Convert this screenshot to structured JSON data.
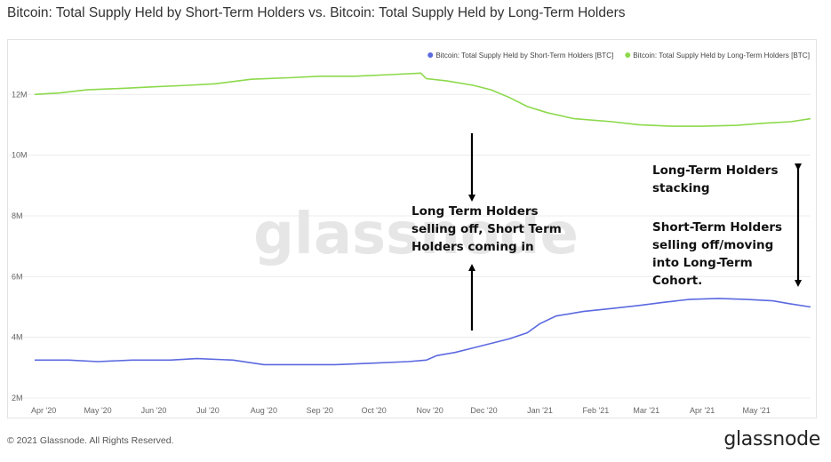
{
  "title": "Bitcoin: Total Supply Held by Short-Term Holders vs. Bitcoin: Total Supply Held by Long-Term Holders",
  "watermark": "glassnode",
  "footer": {
    "copyright": "© 2021 Glassnode. All Rights Reserved.",
    "logo": "glassnode"
  },
  "annotations": {
    "middle": [
      "Long Term Holders",
      "selling off, Short Term",
      "Holders coming in"
    ],
    "right_top": [
      "Long-Term Holders",
      "stacking"
    ],
    "right_bottom": [
      "Short-Term Holders",
      "selling off/moving",
      "into Long-Term",
      "Cohort."
    ]
  },
  "chart_data": {
    "type": "line",
    "title": "Bitcoin: Total Supply Held by Short-Term Holders vs. Bitcoin: Total Supply Held by Long-Term Holders",
    "xlabel": "",
    "ylabel": "",
    "x_ticks": [
      "Apr '20",
      "May '20",
      "Jun '20",
      "Jul '20",
      "Aug '20",
      "Sep '20",
      "Oct '20",
      "Nov '20",
      "Dec '20",
      "Jan '21",
      "Feb '21",
      "Mar '21",
      "Apr '21",
      "May '21"
    ],
    "y_ticks": [
      "2M",
      "4M",
      "6M",
      "8M",
      "10M",
      "12M"
    ],
    "ylim": [
      2000000,
      13500000
    ],
    "xlim": [
      "2020-03-27",
      "2021-05-31"
    ],
    "grid": true,
    "legend_position": "top-right",
    "colors": {
      "short_term": "#5B69E0",
      "long_term": "#8CD94B"
    },
    "series": [
      {
        "name": "Bitcoin: Total Supply Held by Short-Term Holders [BTC]",
        "color": "#5B69E0",
        "points": [
          [
            "2020-03-27",
            3250000
          ],
          [
            "2020-04-15",
            3250000
          ],
          [
            "2020-05-01",
            3200000
          ],
          [
            "2020-05-20",
            3250000
          ],
          [
            "2020-06-10",
            3250000
          ],
          [
            "2020-06-25",
            3300000
          ],
          [
            "2020-07-15",
            3250000
          ],
          [
            "2020-08-01",
            3100000
          ],
          [
            "2020-08-20",
            3100000
          ],
          [
            "2020-09-10",
            3100000
          ],
          [
            "2020-10-01",
            3150000
          ],
          [
            "2020-10-20",
            3200000
          ],
          [
            "2020-10-30",
            3250000
          ],
          [
            "2020-11-05",
            3400000
          ],
          [
            "2020-11-15",
            3500000
          ],
          [
            "2020-11-25",
            3650000
          ],
          [
            "2020-12-05",
            3800000
          ],
          [
            "2020-12-15",
            3950000
          ],
          [
            "2020-12-25",
            4150000
          ],
          [
            "2021-01-01",
            4450000
          ],
          [
            "2021-01-10",
            4700000
          ],
          [
            "2021-01-25",
            4850000
          ],
          [
            "2021-02-10",
            4950000
          ],
          [
            "2021-02-25",
            5050000
          ],
          [
            "2021-03-10",
            5150000
          ],
          [
            "2021-03-25",
            5250000
          ],
          [
            "2021-04-10",
            5280000
          ],
          [
            "2021-04-25",
            5250000
          ],
          [
            "2021-05-10",
            5200000
          ],
          [
            "2021-05-20",
            5100000
          ],
          [
            "2021-05-31",
            5000000
          ]
        ]
      },
      {
        "name": "Bitcoin: Total Supply Held by Long-Term Holders [BTC]",
        "color": "#8CD94B",
        "points": [
          [
            "2020-03-27",
            12000000
          ],
          [
            "2020-04-10",
            12050000
          ],
          [
            "2020-04-25",
            12150000
          ],
          [
            "2020-05-15",
            12200000
          ],
          [
            "2020-06-01",
            12250000
          ],
          [
            "2020-06-20",
            12300000
          ],
          [
            "2020-07-05",
            12350000
          ],
          [
            "2020-07-25",
            12500000
          ],
          [
            "2020-08-15",
            12550000
          ],
          [
            "2020-09-01",
            12600000
          ],
          [
            "2020-09-20",
            12600000
          ],
          [
            "2020-10-10",
            12650000
          ],
          [
            "2020-10-27",
            12700000
          ],
          [
            "2020-10-30",
            12520000
          ],
          [
            "2020-11-10",
            12450000
          ],
          [
            "2020-11-25",
            12300000
          ],
          [
            "2020-12-05",
            12150000
          ],
          [
            "2020-12-15",
            11900000
          ],
          [
            "2020-12-25",
            11600000
          ],
          [
            "2021-01-05",
            11400000
          ],
          [
            "2021-01-20",
            11200000
          ],
          [
            "2021-02-10",
            11100000
          ],
          [
            "2021-02-25",
            11000000
          ],
          [
            "2021-03-15",
            10950000
          ],
          [
            "2021-04-01",
            10950000
          ],
          [
            "2021-04-20",
            10980000
          ],
          [
            "2021-05-05",
            11050000
          ],
          [
            "2021-05-20",
            11100000
          ],
          [
            "2021-05-31",
            11200000
          ]
        ]
      }
    ]
  }
}
